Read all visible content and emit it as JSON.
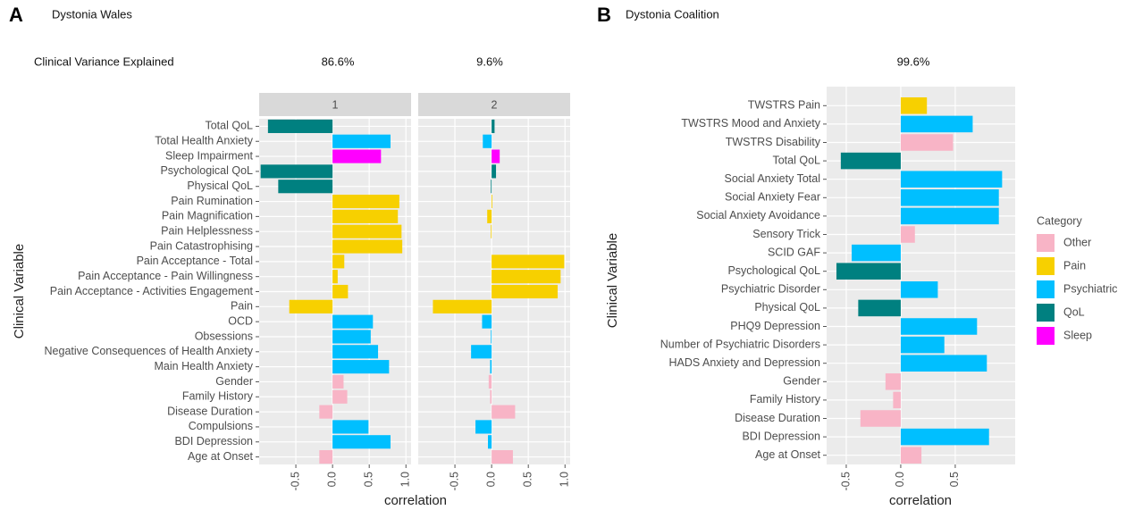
{
  "chart_data": [
    {
      "type": "bar",
      "orientation": "horizontal",
      "panel_label": "A",
      "title": "Dystonia Wales",
      "variance_label": "Clinical Variance Explained",
      "variance_explained": "86.6%",
      "facet": "1",
      "xlabel": "correlation",
      "ylabel": "Clinical Variable",
      "grid": true,
      "categories": [
        "Total QoL",
        "Total Health Anxiety",
        "Sleep Impairment",
        "Psychological QoL",
        "Physical QoL",
        "Pain Rumination",
        "Pain Magnification",
        "Pain Helplessness",
        "Pain Catastrophising",
        "Pain Acceptance - Total",
        "Pain Acceptance - Pain Willingness",
        "Pain Acceptance - Activities Engagement",
        "Pain",
        "OCD",
        "Obsessions",
        "Negative Consequences of Health Anxiety",
        "Main Health Anxiety",
        "Gender",
        "Family History",
        "Disease Duration",
        "Compulsions",
        "BDI Depression",
        "Age at Onset"
      ],
      "values": [
        -0.88,
        0.79,
        0.66,
        -0.98,
        -0.74,
        0.91,
        0.89,
        0.94,
        0.95,
        0.16,
        0.07,
        0.21,
        -0.59,
        0.55,
        0.52,
        0.62,
        0.77,
        0.15,
        0.2,
        -0.18,
        0.49,
        0.79,
        -0.18
      ],
      "groups": [
        "QoL",
        "Psychiatric",
        "Sleep",
        "QoL",
        "QoL",
        "Pain",
        "Pain",
        "Pain",
        "Pain",
        "Pain",
        "Pain",
        "Pain",
        "Pain",
        "Psychiatric",
        "Psychiatric",
        "Psychiatric",
        "Psychiatric",
        "Other",
        "Other",
        "Other",
        "Psychiatric",
        "Psychiatric",
        "Other"
      ],
      "xlim": [
        -1.0,
        1.07
      ],
      "xticks": [
        -0.5,
        {
          "value": 0,
          "label": "0.0"
        },
        0.5,
        {
          "value": 1,
          "label": "1.0"
        }
      ]
    },
    {
      "type": "bar",
      "orientation": "horizontal",
      "variance_explained": "9.6%",
      "facet": "2",
      "grid": true,
      "values": [
        0.04,
        -0.12,
        0.11,
        0.06,
        -0.01,
        0.01,
        -0.06,
        -0.01,
        0,
        0.99,
        0.94,
        0.9,
        -0.8,
        -0.13,
        -0.01,
        -0.28,
        -0.02,
        -0.04,
        -0.02,
        0.32,
        -0.22,
        -0.05,
        0.29
      ],
      "groups": [
        "QoL",
        "Psychiatric",
        "Sleep",
        "QoL",
        "QoL",
        "Pain",
        "Pain",
        "Pain",
        "Pain",
        "Pain",
        "Pain",
        "Pain",
        "Pain",
        "Psychiatric",
        "Psychiatric",
        "Psychiatric",
        "Psychiatric",
        "Other",
        "Other",
        "Other",
        "Psychiatric",
        "Psychiatric",
        "Other"
      ],
      "xlim": [
        -1.0,
        1.07
      ],
      "xticks": [
        -0.5,
        {
          "value": 0,
          "label": "0.0"
        },
        0.5,
        {
          "value": 1,
          "label": "1.0"
        }
      ]
    },
    {
      "type": "bar",
      "orientation": "horizontal",
      "panel_label": "B",
      "title": "Dystonia Coalition",
      "variance_explained": "99.6%",
      "xlabel": "correlation",
      "ylabel": "Clinical Variable",
      "grid": true,
      "categories": [
        "TWSTRS Pain",
        "TWSTRS Mood and Anxiety",
        "TWSTRS Disability",
        "Total QoL",
        "Social Anxiety Total",
        "Social Anxiety Fear",
        "Social Anxiety Avoidance",
        "Sensory Trick",
        "SCID GAF",
        "Psychological QoL",
        "Psychiatric Disorder",
        "Physical QoL",
        "PHQ9 Depression",
        "Number of Psychiatric Disorders",
        "HADS Anxiety and Depression",
        "Gender",
        "Family History",
        "Disease Duration",
        "BDI Depression",
        "Age at Onset"
      ],
      "values": [
        0.24,
        0.66,
        0.48,
        -0.55,
        0.93,
        0.9,
        0.9,
        0.13,
        -0.45,
        -0.59,
        0.34,
        -0.39,
        0.7,
        0.4,
        0.79,
        -0.14,
        -0.07,
        -0.37,
        0.81,
        0.19
      ],
      "groups": [
        "Pain",
        "Psychiatric",
        "Other",
        "QoL",
        "Psychiatric",
        "Psychiatric",
        "Psychiatric",
        "Other",
        "Psychiatric",
        "QoL",
        "Psychiatric",
        "QoL",
        "Psychiatric",
        "Psychiatric",
        "Psychiatric",
        "Other",
        "Other",
        "Other",
        "Psychiatric",
        "Other"
      ],
      "xlim": [
        -0.68,
        1.05
      ],
      "xticks": [
        -0.5,
        {
          "value": 0,
          "label": "0.0"
        },
        0.5
      ],
      "legend": {
        "title": "Category",
        "position": "right",
        "items": [
          {
            "name": "Other",
            "color": "#f8b4c6"
          },
          {
            "name": "Pain",
            "color": "#f7d000"
          },
          {
            "name": "Psychiatric",
            "color": "#00bfff"
          },
          {
            "name": "QoL",
            "color": "#008080"
          },
          {
            "name": "Sleep",
            "color": "#ff00ff"
          }
        ]
      }
    }
  ]
}
